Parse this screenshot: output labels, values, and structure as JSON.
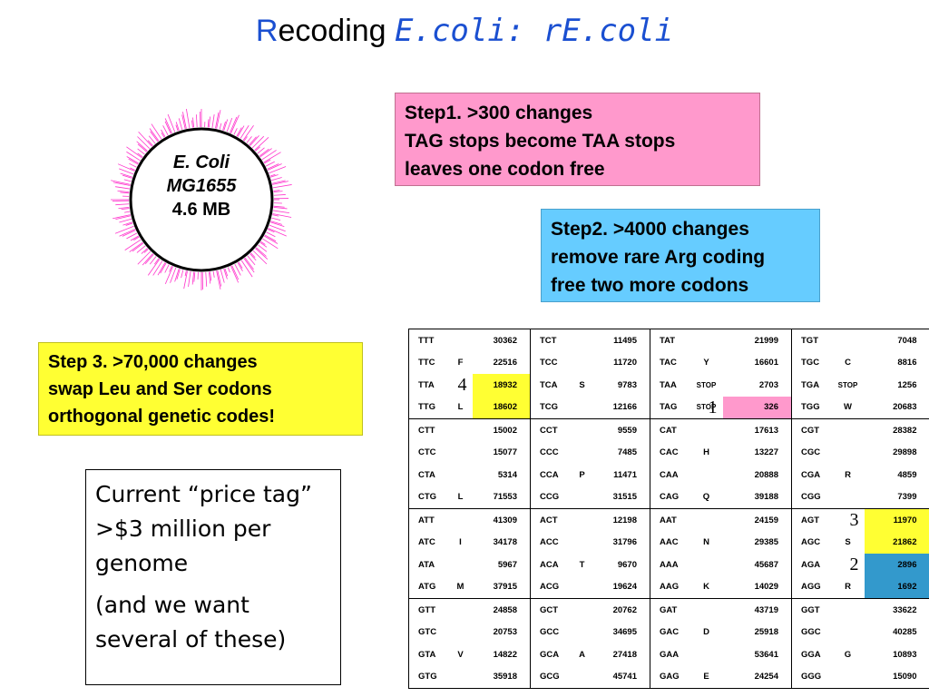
{
  "title": {
    "r": "R",
    "rest": "ecoding ",
    "ecoli": "E.coli",
    "sep": ":  ",
    "re": "rE.coli"
  },
  "genome": {
    "line1": "E. Coli",
    "line2": "MG1655",
    "line3": "4.6 MB"
  },
  "step1": {
    "line1": "Step1. >300 changes",
    "line2": "TAG stops  become  TAA stops",
    "line3": "leaves one codon free"
  },
  "step2": {
    "line1": "Step2.  >4000 changes",
    "line2": "remove rare Arg coding",
    "line3": "free two more codons"
  },
  "step3": {
    "line1": "Step 3.  >70,000 changes",
    "line2": "swap Leu and Ser codons",
    "line3": "orthogonal genetic codes!"
  },
  "price": {
    "line1": "Current “price tag” >$3 million per genome",
    "line2": "(and we want several of these)"
  },
  "colors": {
    "step1": "#ff99cc",
    "step2": "#66ccff",
    "step3": "#ffff33",
    "title_accent": "#1a4fd1",
    "highlight_blue": "#3399cc"
  },
  "codon_table": {
    "rows": [
      [
        [
          "TTT",
          "",
          "30362"
        ],
        [
          "TCT",
          "",
          "11495"
        ],
        [
          "TAT",
          "",
          "21999"
        ],
        [
          "TGT",
          "",
          "7048"
        ]
      ],
      [
        [
          "TTC",
          "F",
          "22516"
        ],
        [
          "TCC",
          "",
          "11720"
        ],
        [
          "TAC",
          "Y",
          "16601"
        ],
        [
          "TGC",
          "C",
          "8816"
        ]
      ],
      [
        [
          "TTA",
          "",
          "18932"
        ],
        [
          "TCA",
          "S",
          "9783"
        ],
        [
          "TAA",
          "STOP",
          "2703"
        ],
        [
          "TGA",
          "STOP",
          "1256"
        ]
      ],
      [
        [
          "TTG",
          "L",
          "18602"
        ],
        [
          "TCG",
          "",
          "12166"
        ],
        [
          "TAG",
          "STOP",
          "326"
        ],
        [
          "TGG",
          "W",
          "20683"
        ]
      ],
      [
        [
          "CTT",
          "",
          "15002"
        ],
        [
          "CCT",
          "",
          "9559"
        ],
        [
          "CAT",
          "",
          "17613"
        ],
        [
          "CGT",
          "",
          "28382"
        ]
      ],
      [
        [
          "CTC",
          "",
          "15077"
        ],
        [
          "CCC",
          "",
          "7485"
        ],
        [
          "CAC",
          "H",
          "13227"
        ],
        [
          "CGC",
          "",
          "29898"
        ]
      ],
      [
        [
          "CTA",
          "",
          "5314"
        ],
        [
          "CCA",
          "P",
          "11471"
        ],
        [
          "CAA",
          "",
          "20888"
        ],
        [
          "CGA",
          "R",
          "4859"
        ]
      ],
      [
        [
          "CTG",
          "L",
          "71553"
        ],
        [
          "CCG",
          "",
          "31515"
        ],
        [
          "CAG",
          "Q",
          "39188"
        ],
        [
          "CGG",
          "",
          "7399"
        ]
      ],
      [
        [
          "ATT",
          "",
          "41309"
        ],
        [
          "ACT",
          "",
          "12198"
        ],
        [
          "AAT",
          "",
          "24159"
        ],
        [
          "AGT",
          "",
          "11970"
        ]
      ],
      [
        [
          "ATC",
          "I",
          "34178"
        ],
        [
          "ACC",
          "",
          "31796"
        ],
        [
          "AAC",
          "N",
          "29385"
        ],
        [
          "AGC",
          "S",
          "21862"
        ]
      ],
      [
        [
          "ATA",
          "",
          "5967"
        ],
        [
          "ACA",
          "T",
          "9670"
        ],
        [
          "AAA",
          "",
          "45687"
        ],
        [
          "AGA",
          "",
          "2896"
        ]
      ],
      [
        [
          "ATG",
          "M",
          "37915"
        ],
        [
          "ACG",
          "",
          "19624"
        ],
        [
          "AAG",
          "K",
          "14029"
        ],
        [
          "AGG",
          "R",
          "1692"
        ]
      ],
      [
        [
          "GTT",
          "",
          "24858"
        ],
        [
          "GCT",
          "",
          "20762"
        ],
        [
          "GAT",
          "",
          "43719"
        ],
        [
          "GGT",
          "",
          "33622"
        ]
      ],
      [
        [
          "GTC",
          "",
          "20753"
        ],
        [
          "GCC",
          "",
          "34695"
        ],
        [
          "GAC",
          "D",
          "25918"
        ],
        [
          "GGC",
          "",
          "40285"
        ]
      ],
      [
        [
          "GTA",
          "V",
          "14822"
        ],
        [
          "GCA",
          "A",
          "27418"
        ],
        [
          "GAA",
          "",
          "53641"
        ],
        [
          "GGA",
          "G",
          "10893"
        ]
      ],
      [
        [
          "GTG",
          "",
          "35918"
        ],
        [
          "GCG",
          "",
          "45741"
        ],
        [
          "GAG",
          "E",
          "24254"
        ],
        [
          "GGG",
          "",
          "15090"
        ]
      ]
    ],
    "markers": {
      "m1": "1",
      "m2": "2",
      "m3": "3",
      "m4": "4"
    }
  }
}
